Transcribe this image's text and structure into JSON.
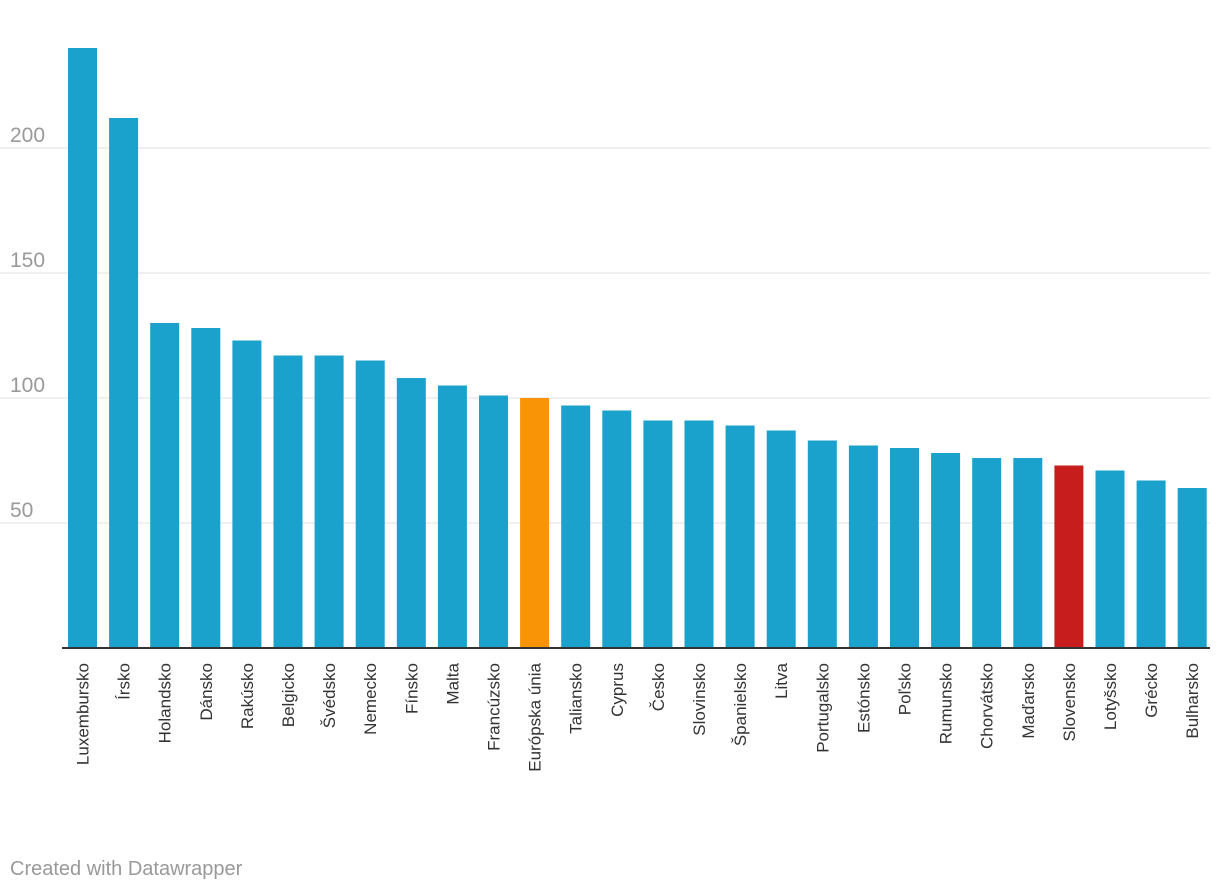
{
  "chart_data": {
    "type": "bar",
    "categories": [
      "Luxembursko",
      "Írsko",
      "Holandsko",
      "Dánsko",
      "Rakúsko",
      "Belgicko",
      "Švédsko",
      "Nemecko",
      "Fínsko",
      "Malta",
      "Francúzsko",
      "Európska únia",
      "Taliansko",
      "Cyprus",
      "Česko",
      "Slovinsko",
      "Španielsko",
      "Litva",
      "Portugalsko",
      "Estónsko",
      "Poľsko",
      "Rumunsko",
      "Chorvátsko",
      "Maďarsko",
      "Slovensko",
      "Lotyšsko",
      "Grécko",
      "Bulharsko"
    ],
    "values": [
      240,
      212,
      130,
      128,
      123,
      117,
      117,
      115,
      108,
      105,
      101,
      100,
      97,
      95,
      91,
      91,
      89,
      87,
      83,
      81,
      80,
      78,
      76,
      76,
      73,
      71,
      67,
      64
    ],
    "ylim": [
      0,
      240
    ],
    "yticks": [
      50,
      100,
      150,
      200
    ],
    "grid": true,
    "colors": {
      "default": "#1aa1cc",
      "Európska únia": "#f89406",
      "Slovensko": "#c71e1d"
    }
  },
  "footer": {
    "credit": "Created with Datawrapper"
  }
}
